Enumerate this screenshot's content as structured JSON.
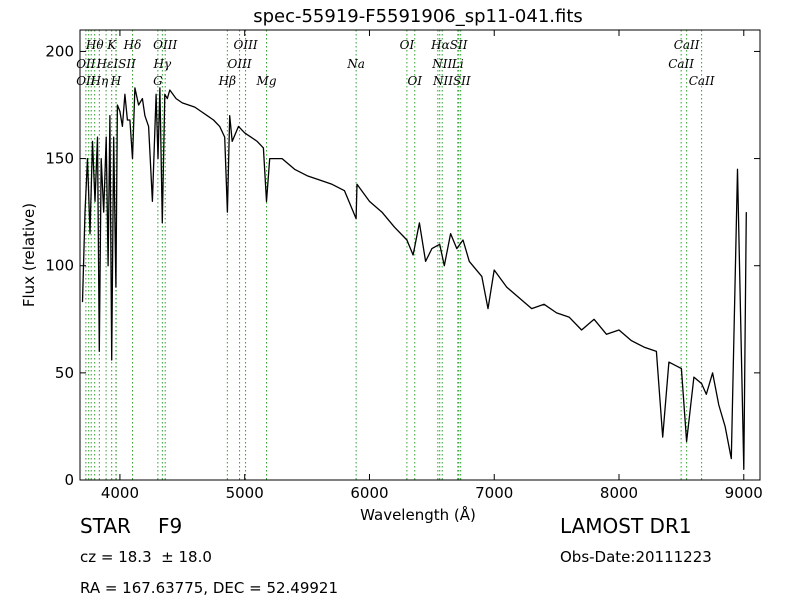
{
  "chart_data": {
    "type": "line",
    "title": "spec-55919-F5591906_sp11-041.fits",
    "xlabel": "Wavelength (Å)",
    "ylabel": "Flux (relative)",
    "xlim": [
      3680,
      9130
    ],
    "ylim": [
      0,
      210
    ],
    "xticks": [
      4000,
      5000,
      6000,
      7000,
      8000,
      9000
    ],
    "yticks": [
      0,
      50,
      100,
      150,
      200
    ],
    "grid": false,
    "line_color": "#000000",
    "marker_color": "#2ca02c",
    "series": [
      {
        "x": [
          3700,
          3720,
          3740,
          3760,
          3780,
          3800,
          3820,
          3835,
          3850,
          3870,
          3890,
          3905,
          3920,
          3934,
          3950,
          3968,
          3980,
          4000,
          4020,
          4040,
          4060,
          4080,
          4101,
          4120,
          4150,
          4180,
          4200,
          4230,
          4260,
          4290,
          4305,
          4320,
          4340,
          4360,
          4380,
          4400,
          4450,
          4500,
          4550,
          4600,
          4650,
          4700,
          4750,
          4800,
          4840,
          4861,
          4880,
          4900,
          4950,
          5000,
          5050,
          5100,
          5150,
          5175,
          5200,
          5300,
          5400,
          5500,
          5600,
          5700,
          5800,
          5893,
          5900,
          6000,
          6100,
          6200,
          6300,
          6350,
          6400,
          6450,
          6500,
          6563,
          6600,
          6650,
          6700,
          6750,
          6800,
          6900,
          6950,
          7000,
          7100,
          7200,
          7300,
          7400,
          7500,
          7600,
          7700,
          7800,
          7900,
          8000,
          8100,
          8200,
          8300,
          8350,
          8400,
          8500,
          8542,
          8600,
          8662,
          8700,
          8750,
          8800,
          8850,
          8900,
          8950,
          9000,
          9020
        ],
        "y": [
          83,
          125,
          150,
          115,
          158,
          130,
          160,
          60,
          150,
          125,
          160,
          100,
          170,
          56,
          160,
          90,
          175,
          172,
          165,
          180,
          168,
          168,
          150,
          183,
          175,
          178,
          170,
          165,
          130,
          180,
          150,
          183,
          120,
          180,
          178,
          182,
          178,
          176,
          175,
          174,
          172,
          170,
          168,
          165,
          160,
          125,
          170,
          158,
          165,
          162,
          160,
          158,
          155,
          130,
          150,
          150,
          145,
          142,
          140,
          138,
          135,
          122,
          138,
          130,
          125,
          118,
          112,
          105,
          120,
          102,
          108,
          110,
          100,
          115,
          108,
          112,
          102,
          95,
          80,
          98,
          90,
          85,
          80,
          82,
          78,
          76,
          70,
          75,
          68,
          70,
          65,
          62,
          60,
          20,
          55,
          52,
          18,
          48,
          45,
          40,
          50,
          35,
          25,
          10,
          145,
          5,
          125
        ]
      }
    ],
    "annotations": [
      {
        "label": "Hθ",
        "x": 3798,
        "row": 1,
        "style": "italic"
      },
      {
        "label": "OII",
        "x": 3727,
        "row": 2,
        "style": "italic"
      },
      {
        "label": "OII",
        "x": 3727,
        "row": 3,
        "style": "italic"
      },
      {
        "label": "Hη",
        "x": 3835,
        "row": 3,
        "style": "italic"
      },
      {
        "label": "K",
        "x": 3934,
        "row": 1,
        "style": "italic"
      },
      {
        "label": "HεISII",
        "x": 3970,
        "row": 2,
        "style": "italic"
      },
      {
        "label": "H",
        "x": 3968,
        "row": 3,
        "style": "italic"
      },
      {
        "label": "Hδ",
        "x": 4101,
        "row": 1,
        "style": "italic"
      },
      {
        "label": "OIII",
        "x": 4363,
        "row": 1,
        "style": "italic"
      },
      {
        "label": "Hγ",
        "x": 4340,
        "row": 2,
        "style": "italic"
      },
      {
        "label": "G",
        "x": 4305,
        "row": 3,
        "style": "italic"
      },
      {
        "label": "OIII",
        "x": 5007,
        "row": 1,
        "style": "italic"
      },
      {
        "label": "OIII",
        "x": 4959,
        "row": 2,
        "style": "italic"
      },
      {
        "label": "Hβ",
        "x": 4861,
        "row": 3,
        "style": "italic"
      },
      {
        "label": "Mg",
        "x": 5175,
        "row": 3,
        "style": "italic"
      },
      {
        "label": "Na",
        "x": 5893,
        "row": 2,
        "style": "italic"
      },
      {
        "label": "OI",
        "x": 6300,
        "row": 1,
        "style": "italic"
      },
      {
        "label": "OI",
        "x": 6363,
        "row": 3,
        "style": "italic"
      },
      {
        "label": "HαSII",
        "x": 6640,
        "row": 1,
        "style": "italic"
      },
      {
        "label": "NII",
        "x": 6583,
        "row": 2,
        "style": "italic"
      },
      {
        "label": "NIISII",
        "x": 6660,
        "row": 3,
        "style": "italic"
      },
      {
        "label": "Li",
        "x": 6708,
        "row": 2,
        "style": "italic"
      },
      {
        "label": "CaII",
        "x": 8542,
        "row": 1,
        "style": "italic"
      },
      {
        "label": "CaII",
        "x": 8498,
        "row": 2,
        "style": "italic"
      },
      {
        "label": "CaII",
        "x": 8662,
        "row": 3,
        "style": "italic"
      }
    ],
    "markers_x": [
      3727,
      3750,
      3770,
      3798,
      3835,
      3889,
      3934,
      3968,
      3970,
      4101,
      4304,
      4340,
      4363,
      4861,
      4959,
      5007,
      5175,
      5893,
      6300,
      6363,
      6548,
      6563,
      6583,
      6708,
      6716,
      6731,
      8498,
      8542,
      8662
    ]
  },
  "info": {
    "object_type": "STAR",
    "subclass": "F9",
    "cz": "cz = 18.3  ± 18.0",
    "survey": "LAMOST DR1",
    "obs_date": "Obs-Date:20111223",
    "coords": "RA = 167.63775, DEC = 52.49921"
  }
}
